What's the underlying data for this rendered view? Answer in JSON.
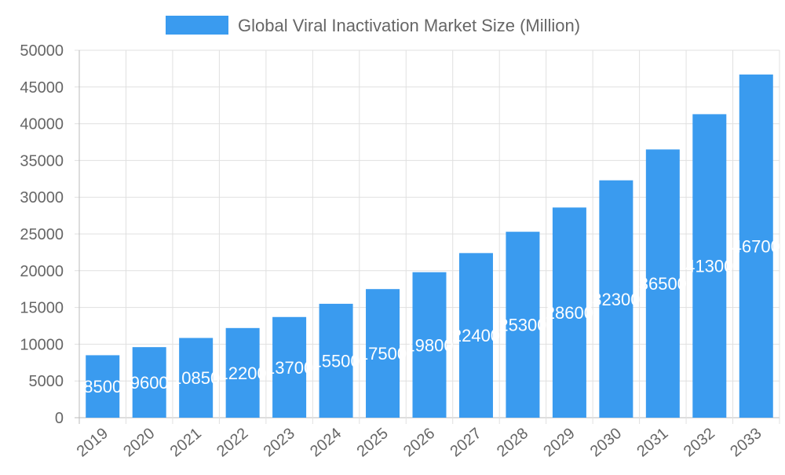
{
  "chart_data": {
    "type": "bar",
    "title": "",
    "xlabel": "",
    "ylabel": "",
    "categories": [
      "2019",
      "2020",
      "2021",
      "2022",
      "2023",
      "2024",
      "2025",
      "2026",
      "2027",
      "2028",
      "2029",
      "2030",
      "2031",
      "2032",
      "2033"
    ],
    "series": [
      {
        "name": "Global Viral Inactivation Market Size (Million)",
        "values": [
          8500,
          9600,
          10850,
          12200,
          13700,
          15500,
          17500,
          19800,
          22400,
          25300,
          28600,
          32300,
          36500,
          41300,
          46700
        ],
        "color": "#3a9bef"
      }
    ],
    "ylim": [
      0,
      50000
    ],
    "yticks": [
      0,
      5000,
      10000,
      15000,
      20000,
      25000,
      30000,
      35000,
      40000,
      45000,
      50000
    ],
    "grid": true,
    "legend": "top-center",
    "data_labels": true
  }
}
